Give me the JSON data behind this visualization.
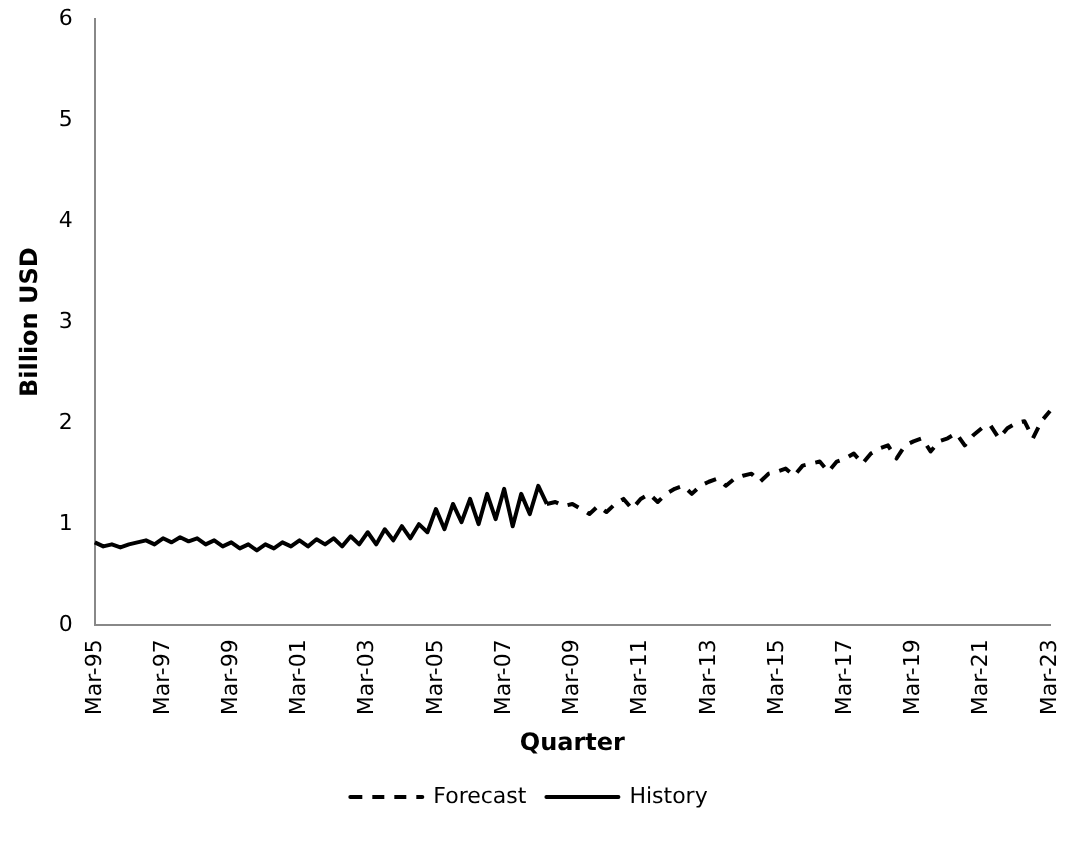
{
  "chart_data": {
    "type": "line",
    "xlabel": "Quarter",
    "ylabel": "Billion USD",
    "categories": [
      "Mar-95",
      null,
      null,
      null,
      null,
      null,
      null,
      null,
      "Mar-97",
      null,
      null,
      null,
      null,
      null,
      null,
      null,
      "Mar-99",
      null,
      null,
      null,
      null,
      null,
      null,
      null,
      "Mar-01",
      null,
      null,
      null,
      null,
      null,
      null,
      null,
      "Mar-03",
      null,
      null,
      null,
      null,
      null,
      null,
      null,
      "Mar-05",
      null,
      null,
      null,
      null,
      null,
      null,
      null,
      "Mar-07",
      null,
      null,
      null,
      null,
      null,
      null,
      null,
      "Mar-09",
      null,
      null,
      null,
      null,
      null,
      null,
      null,
      "Mar-11",
      null,
      null,
      null,
      null,
      null,
      null,
      null,
      "Mar-13",
      null,
      null,
      null,
      null,
      null,
      null,
      null,
      "Mar-15",
      null,
      null,
      null,
      null,
      null,
      null,
      null,
      "Mar-17",
      null,
      null,
      null,
      null,
      null,
      null,
      null,
      "Mar-19",
      null,
      null,
      null,
      null,
      null,
      null,
      null,
      "Mar-21",
      null,
      null,
      null,
      null,
      null,
      null,
      null,
      "Mar-23"
    ],
    "series": [
      {
        "name": "Forecast",
        "color": "#000000",
        "line_style": "dashed",
        "values": [
          null,
          null,
          null,
          null,
          null,
          null,
          null,
          null,
          null,
          null,
          null,
          null,
          null,
          null,
          null,
          null,
          null,
          null,
          null,
          null,
          null,
          null,
          null,
          null,
          null,
          null,
          null,
          null,
          null,
          null,
          null,
          null,
          null,
          null,
          null,
          null,
          null,
          null,
          null,
          null,
          null,
          null,
          null,
          null,
          null,
          null,
          null,
          null,
          null,
          null,
          null,
          null,
          null,
          1.2,
          1.22,
          1.18,
          1.2,
          1.15,
          1.1,
          1.18,
          1.12,
          1.2,
          1.25,
          1.15,
          1.25,
          1.3,
          1.22,
          1.3,
          1.35,
          1.38,
          1.3,
          1.38,
          1.42,
          1.45,
          1.38,
          1.45,
          1.48,
          1.5,
          1.42,
          1.5,
          1.52,
          1.55,
          1.48,
          1.58,
          1.6,
          1.62,
          1.52,
          1.62,
          1.65,
          1.7,
          1.6,
          1.7,
          1.75,
          1.78,
          1.65,
          1.78,
          1.82,
          1.85,
          1.72,
          1.82,
          1.85,
          1.9,
          1.78,
          1.88,
          1.95,
          1.98,
          1.85,
          1.95,
          2.0,
          2.02,
          1.85,
          2.02,
          2.12
        ]
      },
      {
        "name": "History",
        "color": "#000000",
        "line_style": "solid",
        "values": [
          0.82,
          0.78,
          0.8,
          0.77,
          0.8,
          0.82,
          0.84,
          0.8,
          0.86,
          0.82,
          0.87,
          0.83,
          0.86,
          0.8,
          0.84,
          0.78,
          0.82,
          0.76,
          0.8,
          0.74,
          0.8,
          0.76,
          0.82,
          0.78,
          0.84,
          0.78,
          0.85,
          0.8,
          0.86,
          0.78,
          0.88,
          0.8,
          0.92,
          0.8,
          0.95,
          0.84,
          0.98,
          0.86,
          1.0,
          0.92,
          1.15,
          0.95,
          1.2,
          1.02,
          1.25,
          1.0,
          1.3,
          1.05,
          1.35,
          0.98,
          1.3,
          1.1,
          1.38,
          1.2,
          null,
          null,
          null,
          null,
          null,
          null,
          null,
          null,
          null,
          null,
          null,
          null,
          null,
          null,
          null,
          null,
          null,
          null,
          null,
          null,
          null,
          null,
          null,
          null,
          null,
          null,
          null,
          null,
          null,
          null,
          null,
          null,
          null,
          null,
          null,
          null,
          null,
          null,
          null,
          null,
          null,
          null,
          null,
          null,
          null,
          null,
          null,
          null,
          null,
          null,
          null,
          null,
          null,
          null,
          null,
          null,
          null,
          null,
          null
        ]
      }
    ],
    "ylim": [
      0,
      6
    ],
    "yticks": [
      0,
      1,
      2,
      3,
      4,
      5,
      6
    ],
    "grid": false,
    "legend": "bottom",
    "marker": "none"
  }
}
